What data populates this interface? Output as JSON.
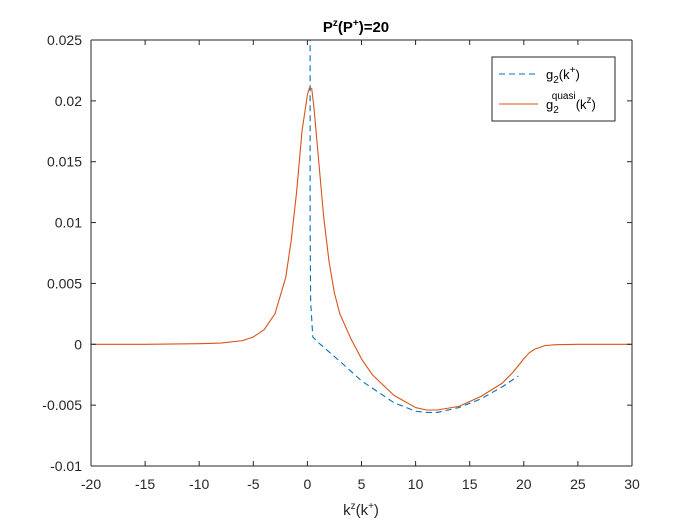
{
  "chart_data": {
    "type": "line",
    "title": {
      "base": "P",
      "sup1": "z",
      "mid": "(P",
      "sup2": "+",
      "tail": ")=20"
    },
    "xlabel": {
      "base": "k",
      "sup1": "z",
      "mid": "(k",
      "sup2": "+",
      "tail": ")"
    },
    "ylabel": "",
    "xlim": [
      -20,
      30
    ],
    "ylim": [
      -0.01,
      0.025
    ],
    "xticks": [
      -20,
      -15,
      -10,
      -5,
      0,
      5,
      10,
      15,
      20,
      25,
      30
    ],
    "xtick_labels": [
      "-20",
      "-15",
      "-10",
      "-5",
      "0",
      "5",
      "10",
      "15",
      "20",
      "25",
      "30"
    ],
    "yticks": [
      -0.01,
      -0.005,
      0,
      0.005,
      0.01,
      0.015,
      0.02,
      0.025
    ],
    "ytick_labels": [
      "-0.01",
      "-0.005",
      "0",
      "0.005",
      "0.01",
      "0.015",
      "0.02",
      "0.025"
    ],
    "grid": false,
    "legend_position": "top-right",
    "series": [
      {
        "legend": {
          "base": "g",
          "sub": "2",
          "mid": "(k",
          "sup": "+",
          "tail": ")"
        },
        "color": "#0072BD",
        "style": "dashed",
        "x": [
          0.25,
          0.25,
          0.25,
          0.3,
          0.5,
          1,
          3,
          5,
          8,
          10,
          11,
          12,
          14,
          16,
          18,
          19.5
        ],
        "y": [
          0.0295,
          0.022,
          0.01,
          0.0035,
          0.0006,
          0.00015,
          -0.0014,
          -0.003,
          -0.0048,
          -0.0055,
          -0.0056,
          -0.0056,
          -0.0052,
          -0.0045,
          -0.0035,
          -0.0026
        ]
      },
      {
        "legend": {
          "base": "g",
          "sub": "2",
          "sup1": "quasi",
          "mid": "(k",
          "sup": "z",
          "tail": ")"
        },
        "color": "#D95319",
        "style": "solid",
        "x": [
          -20,
          -15,
          -10,
          -8,
          -6,
          -5,
          -4,
          -3,
          -2,
          -1.5,
          -1,
          -0.5,
          0,
          0.2,
          0.4,
          0.6,
          1,
          1.5,
          2,
          2.5,
          3,
          4,
          5,
          6,
          8,
          10,
          11,
          12,
          14,
          16,
          18,
          19,
          20,
          20.5,
          21,
          22,
          23,
          25,
          30
        ],
        "y": [
          0,
          0,
          5e-05,
          0.0001,
          0.0003,
          0.0006,
          0.0012,
          0.0025,
          0.0055,
          0.0085,
          0.0125,
          0.0175,
          0.0205,
          0.0211,
          0.021,
          0.0195,
          0.0155,
          0.0105,
          0.0068,
          0.0042,
          0.0025,
          0.0005,
          -0.0012,
          -0.0025,
          -0.0042,
          -0.0052,
          -0.0054,
          -0.0054,
          -0.0051,
          -0.0043,
          -0.0032,
          -0.0023,
          -0.0012,
          -0.0007,
          -0.0004,
          -0.0001,
          -3e-05,
          0,
          0
        ]
      }
    ]
  }
}
